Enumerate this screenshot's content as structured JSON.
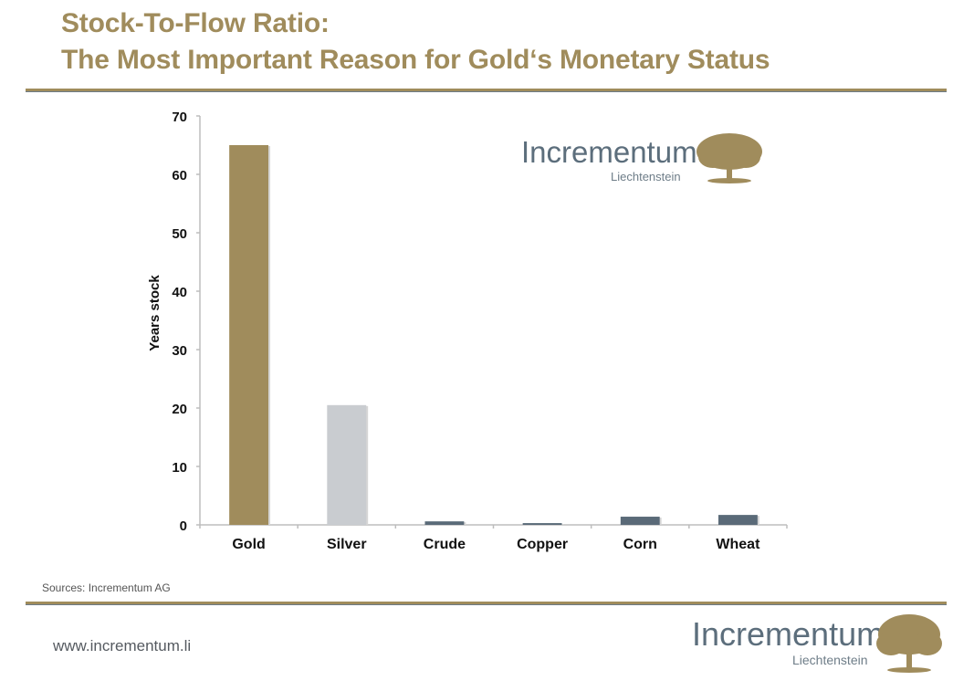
{
  "header": {
    "title_line1": "Stock-To-Flow Ratio:",
    "title_line2": "The Most Important Reason for Gold‘s Monetary Status"
  },
  "chart_logo": {
    "name": "Incrementum",
    "sub": "Liechtenstein"
  },
  "footer": {
    "source": "Sources: Incrementum AG",
    "url": "www.incrementum.li",
    "logo_name": "Incrementum",
    "logo_sub": "Liechtenstein"
  },
  "colors": {
    "gold": "#a08c5c",
    "silver": "#c9ccd0",
    "other": "#5a6a78",
    "brand_text": "#5c6e7c"
  },
  "chart_data": {
    "type": "bar",
    "title": "",
    "xlabel": "",
    "ylabel": "Years stock",
    "ylim": [
      0,
      70
    ],
    "yticks": [
      "0",
      "10",
      "20",
      "30",
      "40",
      "50",
      "60",
      "70"
    ],
    "categories": [
      "Gold",
      "Silver",
      "Crude",
      "Copper",
      "Corn",
      "Wheat"
    ],
    "values": [
      65,
      20.5,
      0.6,
      0.3,
      1.4,
      1.7
    ],
    "bar_colors": [
      "#a08c5c",
      "#c9ccd0",
      "#5a6a78",
      "#5a6a78",
      "#5a6a78",
      "#5a6a78"
    ],
    "grid": false,
    "legend": "none"
  }
}
